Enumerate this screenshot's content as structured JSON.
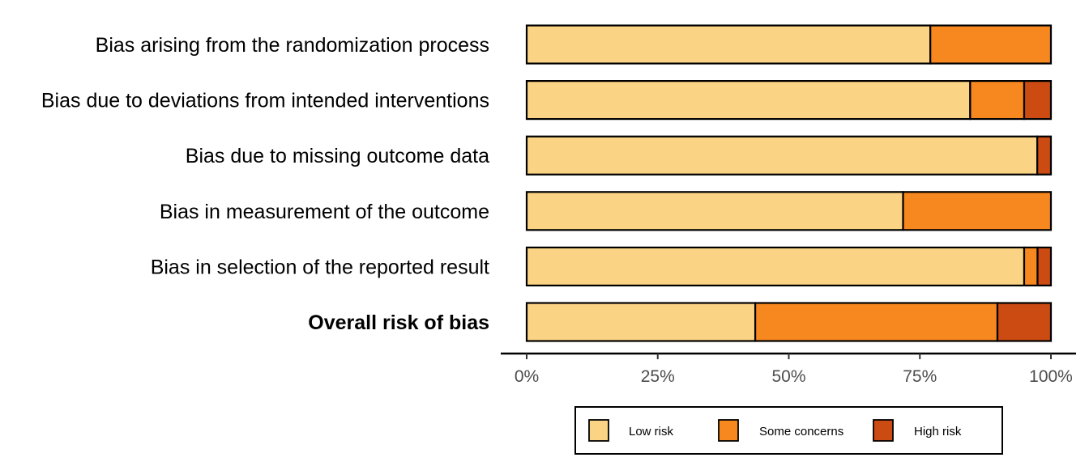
{
  "chart_data": {
    "type": "bar",
    "orientation": "horizontal",
    "stacked": true,
    "categories": [
      "Bias arising from the randomization process",
      "Bias due to deviations from intended interventions",
      "Bias due to missing outcome data",
      "Bias in measurement of the outcome",
      "Bias in selection of the reported result",
      "Overall risk of bias"
    ],
    "bold_categories": [
      "Overall risk of bias"
    ],
    "series": [
      {
        "name": "Low risk",
        "color": "#FBD384",
        "values": [
          77,
          84.6,
          97.4,
          71.8,
          94.9,
          43.6
        ]
      },
      {
        "name": "Some concerns",
        "color": "#F7871F",
        "values": [
          23,
          10.3,
          0,
          28.2,
          2.55,
          46.2
        ]
      },
      {
        "name": "High risk",
        "color": "#CC4B12",
        "values": [
          0,
          5.1,
          2.6,
          0,
          2.55,
          10.2
        ]
      }
    ],
    "x_ticks": [
      "0%",
      "25%",
      "50%",
      "75%",
      "100%"
    ],
    "xlim": [
      0,
      100
    ],
    "xlabel": "",
    "ylabel": "",
    "grid": false,
    "legend_position": "bottom"
  }
}
